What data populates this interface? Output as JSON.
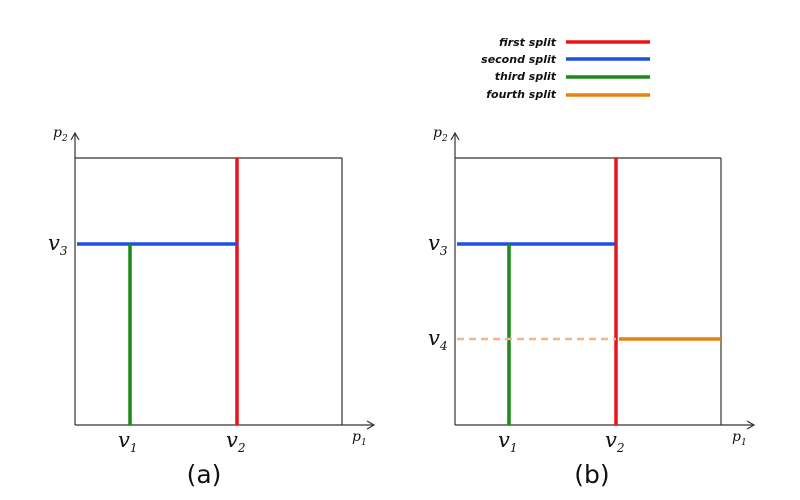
{
  "legend": [
    {
      "label": "first split",
      "color": "#e8141c"
    },
    {
      "label": "second split",
      "color": "#1f4fe0"
    },
    {
      "label": "third split",
      "color": "#1b8a1b"
    },
    {
      "label": "fourth split",
      "color": "#e8800f"
    }
  ],
  "axes": {
    "x": {
      "base": "p",
      "sub": "1"
    },
    "y": {
      "base": "p",
      "sub": "2"
    }
  },
  "values": {
    "v1": {
      "base": "v",
      "sub": "1"
    },
    "v2": {
      "base": "v",
      "sub": "2"
    },
    "v3": {
      "base": "v",
      "sub": "3"
    },
    "v4": {
      "base": "v",
      "sub": "4"
    }
  },
  "panels": [
    {
      "caption": "(a)"
    },
    {
      "caption": "(b)"
    }
  ],
  "colors": {
    "axis": "#333333",
    "first": "#e8141c",
    "second": "#1f4fe0",
    "third": "#1b8a1b",
    "fourth": "#e8800f",
    "fourth_dashed": "#f5b48a"
  }
}
